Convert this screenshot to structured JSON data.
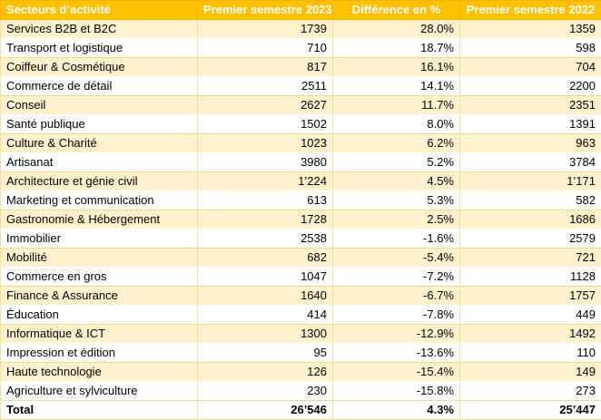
{
  "table": {
    "headers": [
      "Secteurs d’activité",
      "Premier semestre 2023",
      "Différence en %",
      "Premier semestre 2022"
    ],
    "rows": [
      {
        "sector": "Services B2B et B2C",
        "h1_2023": "1739",
        "diff": "28.0%",
        "h1_2022": "1359",
        "trend": "pos"
      },
      {
        "sector": "Transport et logistique",
        "h1_2023": "710",
        "diff": "18.7%",
        "h1_2022": "598",
        "trend": "pos"
      },
      {
        "sector": "Coiffeur & Cosmétique",
        "h1_2023": "817",
        "diff": "16.1%",
        "h1_2022": "704",
        "trend": "pos"
      },
      {
        "sector": "Commerce de détail",
        "h1_2023": "2511",
        "diff": "14.1%",
        "h1_2022": "2200",
        "trend": "pos"
      },
      {
        "sector": "Conseil",
        "h1_2023": "2627",
        "diff": "11.7%",
        "h1_2022": "2351",
        "trend": "pos"
      },
      {
        "sector": "Santé publique",
        "h1_2023": "1502",
        "diff": "8.0%",
        "h1_2022": "1391",
        "trend": "pos"
      },
      {
        "sector": "Culture & Charité",
        "h1_2023": "1023",
        "diff": "6.2%",
        "h1_2022": "963",
        "trend": "pos"
      },
      {
        "sector": "Artisanat",
        "h1_2023": "3980",
        "diff": "5.2%",
        "h1_2022": "3784",
        "trend": "pos"
      },
      {
        "sector": "Architecture et génie civil",
        "h1_2023": "1’224",
        "diff": "4.5%",
        "h1_2022": "1’171",
        "trend": "pos"
      },
      {
        "sector": "Marketing et communication",
        "h1_2023": "613",
        "diff": "5.3%",
        "h1_2022": "582",
        "trend": "pos"
      },
      {
        "sector": "Gastronomie & Hébergement",
        "h1_2023": "1728",
        "diff": "2.5%",
        "h1_2022": "1686",
        "trend": "pos"
      },
      {
        "sector": "Immobilier",
        "h1_2023": "2538",
        "diff": "-1.6%",
        "h1_2022": "2579",
        "trend": "neg"
      },
      {
        "sector": "Mobilité",
        "h1_2023": "682",
        "diff": "-5.4%",
        "h1_2022": "721",
        "trend": "neg"
      },
      {
        "sector": "Commerce en gros",
        "h1_2023": "1047",
        "diff": "-7.2%",
        "h1_2022": "1128",
        "trend": "neg"
      },
      {
        "sector": "Finance & Assurance",
        "h1_2023": "1640",
        "diff": "-6.7%",
        "h1_2022": "1757",
        "trend": "neg"
      },
      {
        "sector": "Éducation",
        "h1_2023": "414",
        "diff": "-7.8%",
        "h1_2022": "449",
        "trend": "neg"
      },
      {
        "sector": "Informatique & ICT",
        "h1_2023": "1300",
        "diff": "-12.9%",
        "h1_2022": "1492",
        "trend": "neg"
      },
      {
        "sector": "Impression et édition",
        "h1_2023": "95",
        "diff": "-13.6%",
        "h1_2022": "110",
        "trend": "neg"
      },
      {
        "sector": "Haute technologie",
        "h1_2023": "126",
        "diff": "-15.4%",
        "h1_2022": "149",
        "trend": "neg"
      },
      {
        "sector": "Agriculture et sylviculture",
        "h1_2023": "230",
        "diff": "-15.8%",
        "h1_2022": "273",
        "trend": "neg"
      }
    ],
    "total": {
      "sector": "Total",
      "h1_2023": "26’546",
      "diff": "4.3%",
      "h1_2022": "25’447",
      "trend": "pos"
    }
  },
  "colors": {
    "header_bg": "#ffc000",
    "band": "#fff2cc",
    "positive": "#2e8b2e",
    "negative": "#e02020"
  }
}
